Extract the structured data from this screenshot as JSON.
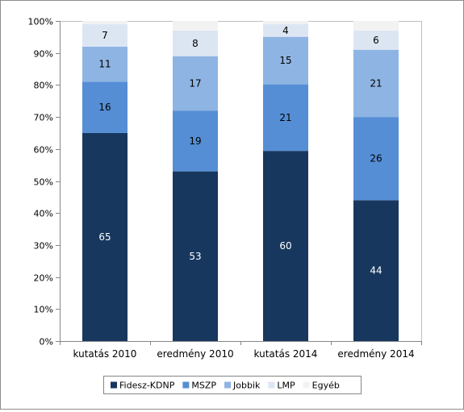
{
  "chart_data": {
    "type": "bar",
    "stacked": true,
    "percent_stacked": true,
    "categories": [
      "kutatás 2010",
      "eredmény 2010",
      "kutatás 2014",
      "eredmény 2014"
    ],
    "series": [
      {
        "name": "Fidesz-KDNP",
        "values": [
          65,
          53,
          60,
          44
        ],
        "labels": [
          "65",
          "53",
          "60",
          "44"
        ],
        "color": "#17375e",
        "label_color": "#ffffff"
      },
      {
        "name": "MSZP",
        "values": [
          16,
          19,
          21,
          26
        ],
        "labels": [
          "16",
          "19",
          "21",
          "26"
        ],
        "color": "#558ed5",
        "label_color": "#000000"
      },
      {
        "name": "Jobbik",
        "values": [
          11,
          17,
          15,
          21
        ],
        "labels": [
          "11",
          "17",
          "15",
          "21"
        ],
        "color": "#8eb4e3",
        "label_color": "#000000"
      },
      {
        "name": "LMP",
        "values": [
          7,
          8,
          4,
          6
        ],
        "labels": [
          "7",
          "8",
          "4",
          "6"
        ],
        "color": "#dce6f2",
        "label_color": "#000000"
      },
      {
        "name": "Egyéb",
        "values": [
          1,
          3,
          1,
          3
        ],
        "labels": [
          "",
          "",
          "",
          ""
        ],
        "color": "#f2f2f2",
        "label_color": "#000000"
      }
    ],
    "y_ticks": [
      "0%",
      "10%",
      "20%",
      "30%",
      "40%",
      "50%",
      "60%",
      "70%",
      "80%",
      "90%",
      "100%"
    ],
    "ylim": [
      0,
      100
    ],
    "grid": false,
    "legend_position": "bottom",
    "title": "",
    "xlabel": "",
    "ylabel": ""
  }
}
